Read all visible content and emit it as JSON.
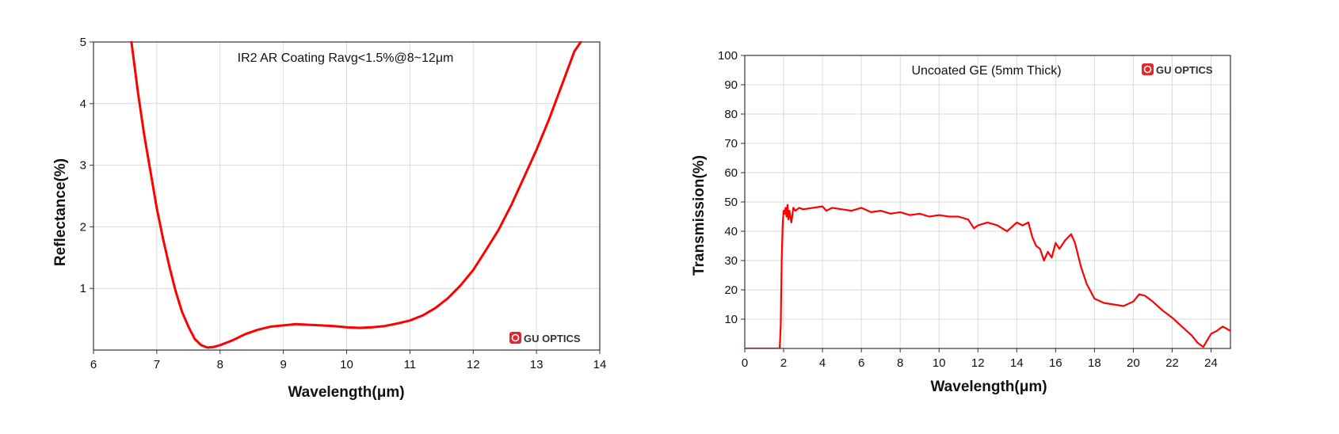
{
  "brand": {
    "name": "GU OPTICS",
    "color": "#e8262a",
    "icon": "gu-optics-logo-icon"
  },
  "chart_data": [
    {
      "type": "line",
      "title": "IR2 AR Coating Ravg<1.5%@8~12μm",
      "xlabel": "Wavelength(μm)",
      "ylabel": "Reflectance(%)",
      "xlim": [
        6,
        14
      ],
      "ylim": [
        0,
        5
      ],
      "xticks": [
        6,
        7,
        8,
        9,
        10,
        11,
        12,
        13,
        14
      ],
      "yticks": [
        1,
        2,
        3,
        4,
        5
      ],
      "grid": true,
      "color": "#ff0000",
      "series": [
        {
          "x": [
            6.6,
            6.7,
            6.8,
            6.9,
            7.0,
            7.1,
            7.2,
            7.3,
            7.4,
            7.5,
            7.6,
            7.7,
            7.8,
            7.9,
            8.0,
            8.2,
            8.4,
            8.6,
            8.8,
            9.0,
            9.2,
            9.4,
            9.6,
            9.8,
            10.0,
            10.2,
            10.4,
            10.6,
            10.8,
            11.0,
            11.2,
            11.4,
            11.6,
            11.8,
            12.0,
            12.2,
            12.4,
            12.6,
            12.8,
            13.0,
            13.2,
            13.4,
            13.6,
            13.7
          ],
          "y": [
            5.0,
            4.2,
            3.5,
            2.9,
            2.3,
            1.8,
            1.35,
            0.95,
            0.62,
            0.38,
            0.18,
            0.08,
            0.04,
            0.05,
            0.08,
            0.16,
            0.26,
            0.33,
            0.38,
            0.4,
            0.42,
            0.41,
            0.4,
            0.39,
            0.37,
            0.36,
            0.37,
            0.39,
            0.43,
            0.48,
            0.56,
            0.68,
            0.84,
            1.05,
            1.3,
            1.62,
            1.95,
            2.35,
            2.8,
            3.25,
            3.75,
            4.3,
            4.85,
            5.0
          ]
        }
      ]
    },
    {
      "type": "line",
      "title": "Uncoated GE (5mm Thick)",
      "xlabel": "Wavelength(μm)",
      "ylabel": "Transmission(%)",
      "xlim": [
        0,
        25
      ],
      "ylim": [
        0,
        100
      ],
      "xticks": [
        0,
        2,
        4,
        6,
        8,
        10,
        12,
        14,
        16,
        18,
        20,
        22,
        24
      ],
      "yticks": [
        10,
        20,
        30,
        40,
        50,
        60,
        70,
        80,
        90,
        100
      ],
      "grid": true,
      "color": "#ff0000",
      "series": [
        {
          "x": [
            0,
            1.8,
            1.85,
            1.9,
            1.95,
            2.0,
            2.05,
            2.1,
            2.15,
            2.2,
            2.25,
            2.3,
            2.4,
            2.5,
            2.6,
            2.8,
            3.0,
            3.5,
            4.0,
            4.2,
            4.5,
            5.0,
            5.5,
            6.0,
            6.5,
            7.0,
            7.5,
            8.0,
            8.5,
            9.0,
            9.5,
            10.0,
            10.5,
            11.0,
            11.5,
            11.8,
            12.0,
            12.5,
            13.0,
            13.5,
            14.0,
            14.3,
            14.6,
            14.8,
            15.0,
            15.2,
            15.4,
            15.6,
            15.8,
            16.0,
            16.2,
            16.5,
            16.8,
            17.0,
            17.3,
            17.6,
            18.0,
            18.5,
            19.0,
            19.5,
            20.0,
            20.3,
            20.6,
            21.0,
            21.5,
            22.0,
            22.5,
            23.0,
            23.3,
            23.6,
            24.0,
            24.3,
            24.6,
            25.0
          ],
          "y": [
            0,
            0,
            8,
            30,
            42,
            47,
            46,
            48,
            45,
            49,
            44,
            47,
            43,
            48,
            47,
            48,
            47.5,
            48,
            48.5,
            47,
            48,
            47.5,
            47,
            48,
            46.5,
            47,
            46,
            46.5,
            45.5,
            46,
            45,
            45.5,
            45,
            45,
            44,
            41,
            42,
            43,
            42,
            40,
            43,
            42,
            43,
            38,
            35,
            34,
            30,
            33,
            31,
            36,
            34,
            37,
            39,
            36,
            28,
            22,
            17,
            15.5,
            15,
            14.5,
            16,
            18.5,
            18,
            16,
            13,
            10.5,
            7.5,
            4.5,
            2,
            0.5,
            5,
            6,
            7.5,
            6
          ]
        }
      ]
    }
  ]
}
